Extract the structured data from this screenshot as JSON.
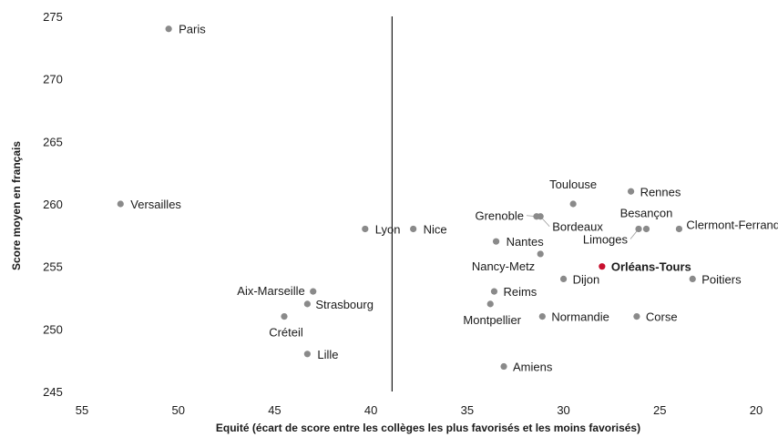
{
  "chart_data": {
    "type": "scatter",
    "xlabel": "Equité (écart de score entre les collèges les plus favorisés et les moins favorisés)",
    "ylabel": "Score moyen en français",
    "xlim": [
      55,
      20
    ],
    "ylim": [
      245,
      275
    ],
    "x_reversed": true,
    "x_ticks": [
      55,
      50,
      45,
      40,
      35,
      30,
      25,
      20
    ],
    "y_ticks": [
      245,
      250,
      255,
      260,
      265,
      270,
      275
    ],
    "reference_line_x": 38.9,
    "grid": false,
    "colors": {
      "point": "#8a8a8a",
      "highlight": "#c8102e",
      "text": "#1a1a1a",
      "reference_line": "#1a1a1a"
    },
    "points": [
      {
        "label": "Paris",
        "x": 50.5,
        "y": 274,
        "highlight": false
      },
      {
        "label": "Versailles",
        "x": 53.0,
        "y": 260,
        "highlight": false
      },
      {
        "label": "Lyon",
        "x": 40.3,
        "y": 258,
        "highlight": false
      },
      {
        "label": "Nice",
        "x": 37.8,
        "y": 258,
        "highlight": false
      },
      {
        "label": "Aix-Marseille",
        "x": 43.0,
        "y": 253,
        "highlight": false
      },
      {
        "label": "Strasbourg",
        "x": 43.3,
        "y": 252,
        "highlight": false
      },
      {
        "label": "Créteil",
        "x": 44.5,
        "y": 251,
        "highlight": false
      },
      {
        "label": "Lille",
        "x": 43.3,
        "y": 248,
        "highlight": false
      },
      {
        "label": "Toulouse",
        "x": 29.5,
        "y": 260,
        "highlight": false
      },
      {
        "label": "Rennes",
        "x": 26.5,
        "y": 261,
        "highlight": false
      },
      {
        "label": "Grenoble",
        "x": 31.4,
        "y": 259,
        "highlight": false
      },
      {
        "label": "Bordeaux",
        "x": 31.2,
        "y": 259,
        "highlight": false
      },
      {
        "label": "Besançon",
        "x": 25.7,
        "y": 258,
        "highlight": false
      },
      {
        "label": "Limoges",
        "x": 26.1,
        "y": 258,
        "highlight": false
      },
      {
        "label": "Clermont-Ferrand",
        "x": 24.0,
        "y": 258,
        "highlight": false
      },
      {
        "label": "Nantes",
        "x": 33.5,
        "y": 257,
        "highlight": false
      },
      {
        "label": "Nancy-Metz",
        "x": 31.2,
        "y": 256,
        "highlight": false
      },
      {
        "label": "Orléans-Tours",
        "x": 28.0,
        "y": 255,
        "highlight": true
      },
      {
        "label": "Poitiers",
        "x": 23.3,
        "y": 254,
        "highlight": false
      },
      {
        "label": "Dijon",
        "x": 30.0,
        "y": 254,
        "highlight": false
      },
      {
        "label": "Reims",
        "x": 33.6,
        "y": 253,
        "highlight": false
      },
      {
        "label": "Montpellier",
        "x": 33.8,
        "y": 252,
        "highlight": false
      },
      {
        "label": "Normandie",
        "x": 31.1,
        "y": 251,
        "highlight": false
      },
      {
        "label": "Corse",
        "x": 26.2,
        "y": 251,
        "highlight": false
      },
      {
        "label": "Amiens",
        "x": 33.1,
        "y": 247,
        "highlight": false
      }
    ]
  }
}
